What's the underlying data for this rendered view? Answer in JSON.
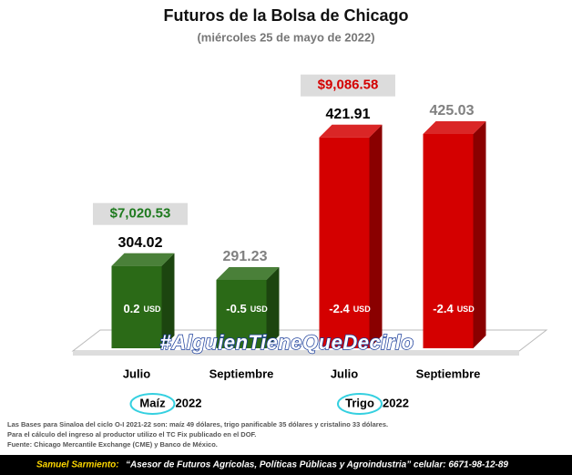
{
  "chart_data": {
    "type": "bar",
    "title": "Futuros de la Bolsa de Chicago",
    "subtitle": "(miércoles 25 de mayo de 2022)",
    "categories": [
      "Julio",
      "Septiembre",
      "Julio",
      "Septiembre"
    ],
    "values": [
      304.02,
      291.23,
      421.91,
      425.03
    ],
    "colors": [
      "#2b6a17",
      "#2b6a17",
      "#d40000",
      "#d40000"
    ],
    "value_label_colors": [
      "#000000",
      "#808080",
      "#000000",
      "#808080"
    ],
    "changes": [
      0.2,
      -0.5,
      -2.4,
      -2.4
    ],
    "change_unit": "USD",
    "groups": [
      {
        "name": "Maíz",
        "year": "2022",
        "price": 7020.53,
        "price_label": "$7,020.53",
        "price_color": "#1e7a1e"
      },
      {
        "name": "Trigo",
        "year": "2022",
        "price": 9086.58,
        "price_label": "$9,086.58",
        "price_color": "#d40000"
      }
    ],
    "hashtag": "#AlguienTieneQueDecirlo",
    "notes": [
      "Las Bases para Sinaloa del ciclo O-I 2021-22 son: maíz 49 dólares, trigo panificable 35 dólares y cristalino 33 dólares.",
      "Para el cálculo del ingreso al productor utilizo el TC Fix publicado en el DOF.",
      "Fuente: Chicago Mercantile Exchange (CME) y Banco de México."
    ],
    "footer": {
      "author": "Samuel Sarmiento:",
      "text": "“Asesor de Futuros Agrícolas, Políticas Públicas y Agroindustria”  celular: 6671-98-12-89"
    }
  }
}
